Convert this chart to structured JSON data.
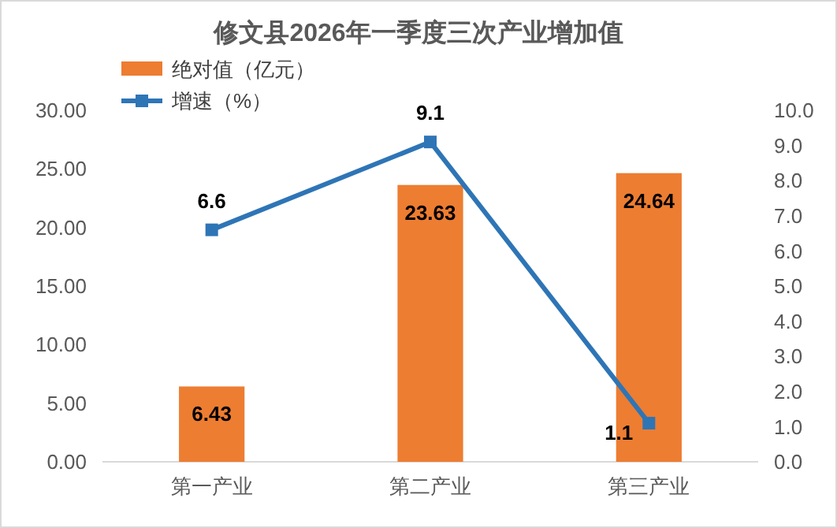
{
  "chart_data": {
    "type": "bar",
    "title": "修文县2026年一季度三次产业增加值",
    "categories": [
      "第一产业",
      "第二产业",
      "第三产业"
    ],
    "series": [
      {
        "name": "绝对值（亿元）",
        "color": "#ed7d31",
        "values": [
          6.43,
          23.63,
          24.64
        ]
      },
      {
        "name": "增速（%）",
        "type": "line",
        "axis": "y2",
        "color": "#2e75b6",
        "marker": "square",
        "values": [
          6.6,
          9.1,
          1.1
        ]
      }
    ],
    "ylim": [
      0,
      30
    ],
    "yticks": [
      {
        "value": 0,
        "label": "0.00"
      },
      {
        "value": 5,
        "label": "5.00"
      },
      {
        "value": 10,
        "label": "10.00"
      },
      {
        "value": 15,
        "label": "15.00"
      },
      {
        "value": 20,
        "label": "20.00"
      },
      {
        "value": 25,
        "label": "25.00"
      },
      {
        "value": 30,
        "label": "30.00"
      }
    ],
    "y2lim": [
      0,
      10
    ],
    "y2ticks": [
      {
        "value": 0,
        "label": "0.0"
      },
      {
        "value": 1,
        "label": "1.0"
      },
      {
        "value": 2,
        "label": "2.0"
      },
      {
        "value": 3,
        "label": "3.0"
      },
      {
        "value": 4,
        "label": "4.0"
      },
      {
        "value": 5,
        "label": "5.0"
      },
      {
        "value": 6,
        "label": "6.0"
      },
      {
        "value": 7,
        "label": "7.0"
      },
      {
        "value": 8,
        "label": "8.0"
      },
      {
        "value": 9,
        "label": "9.0"
      },
      {
        "value": 10,
        "label": "10.0"
      }
    ],
    "data_labels": true,
    "grid": false,
    "legend": "top left"
  }
}
